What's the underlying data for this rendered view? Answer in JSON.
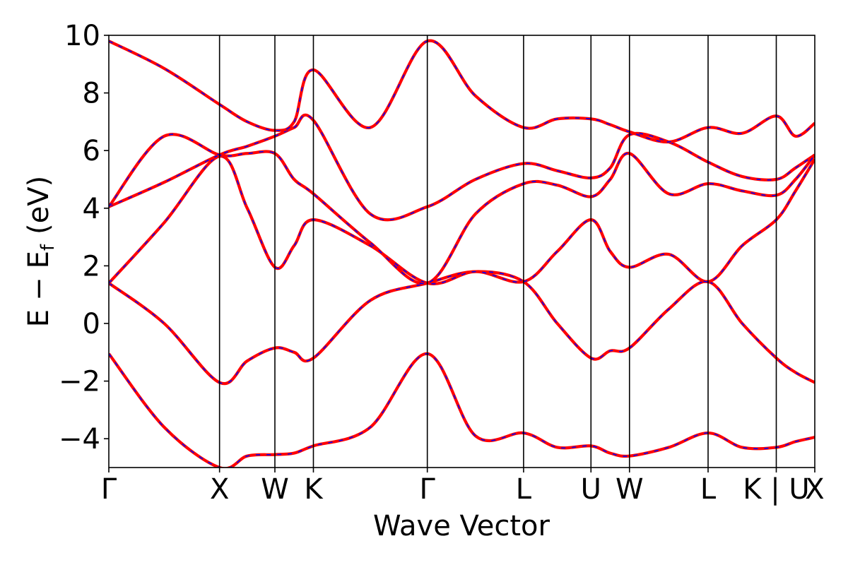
{
  "chart_data": {
    "type": "line",
    "title": "",
    "xlabel": "Wave Vector",
    "ylabel": "E − E_f (eV)",
    "ylabel_parts": {
      "E": "E",
      "minus": "−",
      "Ef_main": "E",
      "Ef_sub": "f",
      "unit": "(eV)"
    },
    "ylim": [
      -5,
      10
    ],
    "yticks": [
      -4,
      -2,
      0,
      2,
      4,
      6,
      8,
      10
    ],
    "ytick_labels": [
      "−4",
      "−2",
      "0",
      "2",
      "4",
      "6",
      "8",
      "10"
    ],
    "xlim": [
      0,
      8.8
    ],
    "kpoint_positions": [
      0,
      1.38,
      2.07,
      2.55,
      3.97,
      5.17,
      6.01,
      6.49,
      7.47,
      8.32,
      8.8
    ],
    "kpoint_labels": [
      "Γ",
      "X",
      "W",
      "K",
      "Γ",
      "L",
      "U",
      "W",
      "L",
      "K | U",
      "X"
    ],
    "grid": false,
    "legend": "none",
    "colors": {
      "series_a": "#ff0000",
      "series_b": "#0000ff",
      "kline": "#000000"
    },
    "x": [
      0,
      0.69,
      1.38,
      1.725,
      2.07,
      2.31,
      2.55,
      3.26,
      3.97,
      4.57,
      5.17,
      5.59,
      6.01,
      6.25,
      6.49,
      6.98,
      7.47,
      7.895,
      8.32,
      8.56,
      8.8
    ],
    "series": [
      {
        "values": [
          -1.05,
          -3.6,
          -5.0,
          -4.6,
          -4.55,
          -4.5,
          -4.25,
          -3.6,
          -1.05,
          -3.9,
          -3.8,
          -4.3,
          -4.25,
          -4.5,
          -4.6,
          -4.3,
          -3.8,
          -4.3,
          -4.3,
          -4.1,
          -3.95
        ]
      },
      {
        "values": [
          1.4,
          0.0,
          -2.05,
          -1.3,
          -0.85,
          -1.0,
          -1.2,
          0.8,
          1.4,
          1.8,
          1.45,
          0.0,
          -1.2,
          -0.95,
          -0.85,
          0.5,
          1.45,
          0.0,
          -1.2,
          -1.7,
          -2.05
        ]
      },
      {
        "values": [
          1.4,
          3.5,
          5.8,
          4.0,
          1.95,
          2.7,
          3.6,
          2.7,
          1.4,
          1.8,
          1.45,
          2.5,
          3.6,
          2.5,
          1.95,
          2.4,
          1.45,
          2.7,
          3.6,
          4.6,
          5.7
        ]
      },
      {
        "values": [
          4.05,
          4.9,
          5.85,
          6.15,
          6.5,
          6.8,
          7.05,
          3.8,
          4.05,
          5.0,
          5.55,
          5.3,
          5.05,
          5.4,
          6.55,
          6.3,
          5.6,
          5.1,
          5.0,
          5.4,
          5.85
        ]
      },
      {
        "values": [
          4.05,
          6.5,
          5.85,
          5.9,
          5.9,
          5.0,
          4.5,
          2.8,
          1.4,
          3.8,
          4.85,
          4.8,
          4.4,
          5.0,
          5.9,
          4.5,
          4.85,
          4.6,
          4.45,
          5.0,
          5.85
        ]
      },
      {
        "values": [
          9.8,
          8.85,
          7.6,
          7.0,
          6.7,
          7.0,
          8.8,
          6.8,
          9.8,
          7.9,
          6.8,
          7.1,
          7.1,
          6.9,
          6.65,
          6.3,
          6.8,
          6.6,
          7.2,
          6.5,
          6.95
        ]
      }
    ]
  }
}
